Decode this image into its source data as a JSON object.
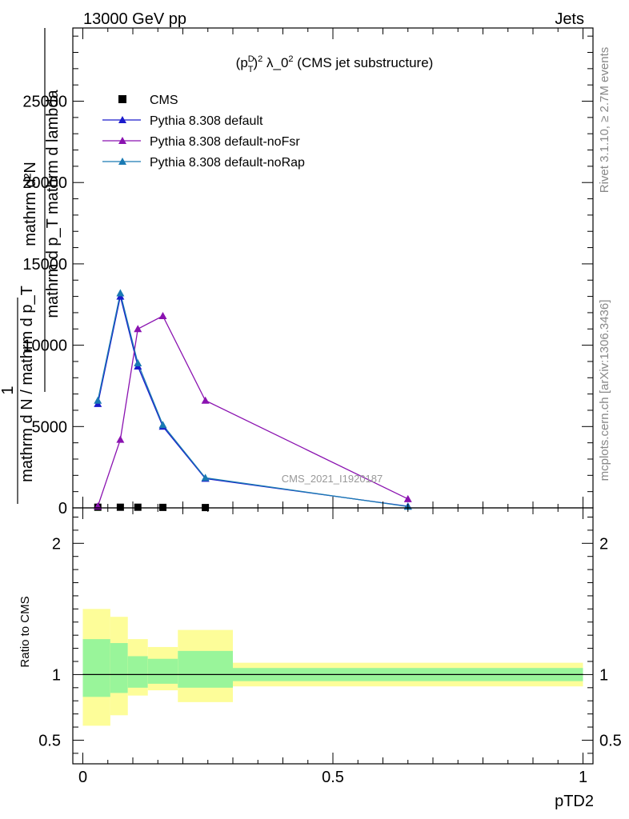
{
  "header": {
    "left": "13000 GeV pp",
    "right": "Jets"
  },
  "side_labels": {
    "rivet": "Rivet 3.1.10, ≥ 2.7M events",
    "mcplots": "mcplots.cern.ch [arXiv:1306.3436]"
  },
  "chart_data": [
    {
      "type": "line",
      "title": "(p_T^D)^2 λ_0^2 (CMS jet substructure)",
      "title_parts": {
        "pre": "(p",
        "sup1": "D",
        "sub1": "T",
        "mid": ")",
        "sup2": "2",
        "lambda": " λ_0",
        "sup3": "2",
        "post": " (CMS jet substructure)"
      },
      "ylabel_numerator": "mathrm d²N",
      "ylabel_denominator": "mathrm d p_T mathrm d lambda",
      "ylabel_prefix": "1",
      "ylabel_prefix_denominator": "mathrm d N / mathrm d p_T",
      "watermark": "CMS_2021_I1920187",
      "xlim": [
        -0.02,
        1.02
      ],
      "ylim": [
        0,
        29500
      ],
      "yticks": [
        0,
        5000,
        10000,
        15000,
        20000,
        25000
      ],
      "ytick_labels": [
        "0",
        "5000",
        "10000",
        "15000",
        "20000",
        "25000"
      ],
      "legend_position": "top-left",
      "series": [
        {
          "name": "CMS",
          "color": "#000000",
          "marker": "square",
          "x": [
            0.03,
            0.075,
            0.11,
            0.16,
            0.245
          ],
          "y": [
            40,
            40,
            40,
            30,
            20
          ]
        },
        {
          "name": "Pythia 8.308 default",
          "color": "#1a1acc",
          "marker": "triangle",
          "x": [
            0.03,
            0.075,
            0.11,
            0.16,
            0.245,
            0.65
          ],
          "y": [
            6400,
            13000,
            8700,
            5000,
            1800,
            100
          ]
        },
        {
          "name": "Pythia 8.308 default-noFsr",
          "color": "#8a12b0",
          "marker": "triangle",
          "x": [
            0.03,
            0.075,
            0.11,
            0.16,
            0.245,
            0.65
          ],
          "y": [
            100,
            4200,
            11000,
            11800,
            6600,
            550
          ]
        },
        {
          "name": "Pythia 8.308 default-noRap",
          "color": "#1a7ab3",
          "marker": "triangle",
          "x": [
            0.03,
            0.075,
            0.11,
            0.16,
            0.245,
            0.65
          ],
          "y": [
            6600,
            13200,
            8900,
            5100,
            1850,
            80
          ]
        }
      ]
    },
    {
      "type": "area",
      "ylabel": "Ratio to CMS",
      "xlabel": "pTD2",
      "xlim": [
        -0.02,
        1.02
      ],
      "ylim": [
        0.32,
        2.27
      ],
      "xticks": [
        0,
        0.5,
        1
      ],
      "xtick_labels": [
        "0",
        "0.5",
        "1"
      ],
      "yticks": [
        0.5,
        1,
        2
      ],
      "ytick_labels": [
        "0.5",
        "1",
        "2"
      ],
      "reference": 1,
      "bands": {
        "bins": [
          0.0,
          0.055,
          0.09,
          0.13,
          0.19,
          0.3,
          1.0
        ],
        "inner_low": [
          0.83,
          0.86,
          0.9,
          0.93,
          0.9,
          0.95
        ],
        "inner_high": [
          1.27,
          1.24,
          1.14,
          1.12,
          1.18,
          1.05
        ],
        "outer_low": [
          0.61,
          0.69,
          0.84,
          0.88,
          0.79,
          0.91
        ],
        "outer_high": [
          1.5,
          1.44,
          1.27,
          1.21,
          1.34,
          1.09
        ],
        "inner_color": "#99f59a",
        "outer_color": "#fdfd99"
      }
    }
  ]
}
